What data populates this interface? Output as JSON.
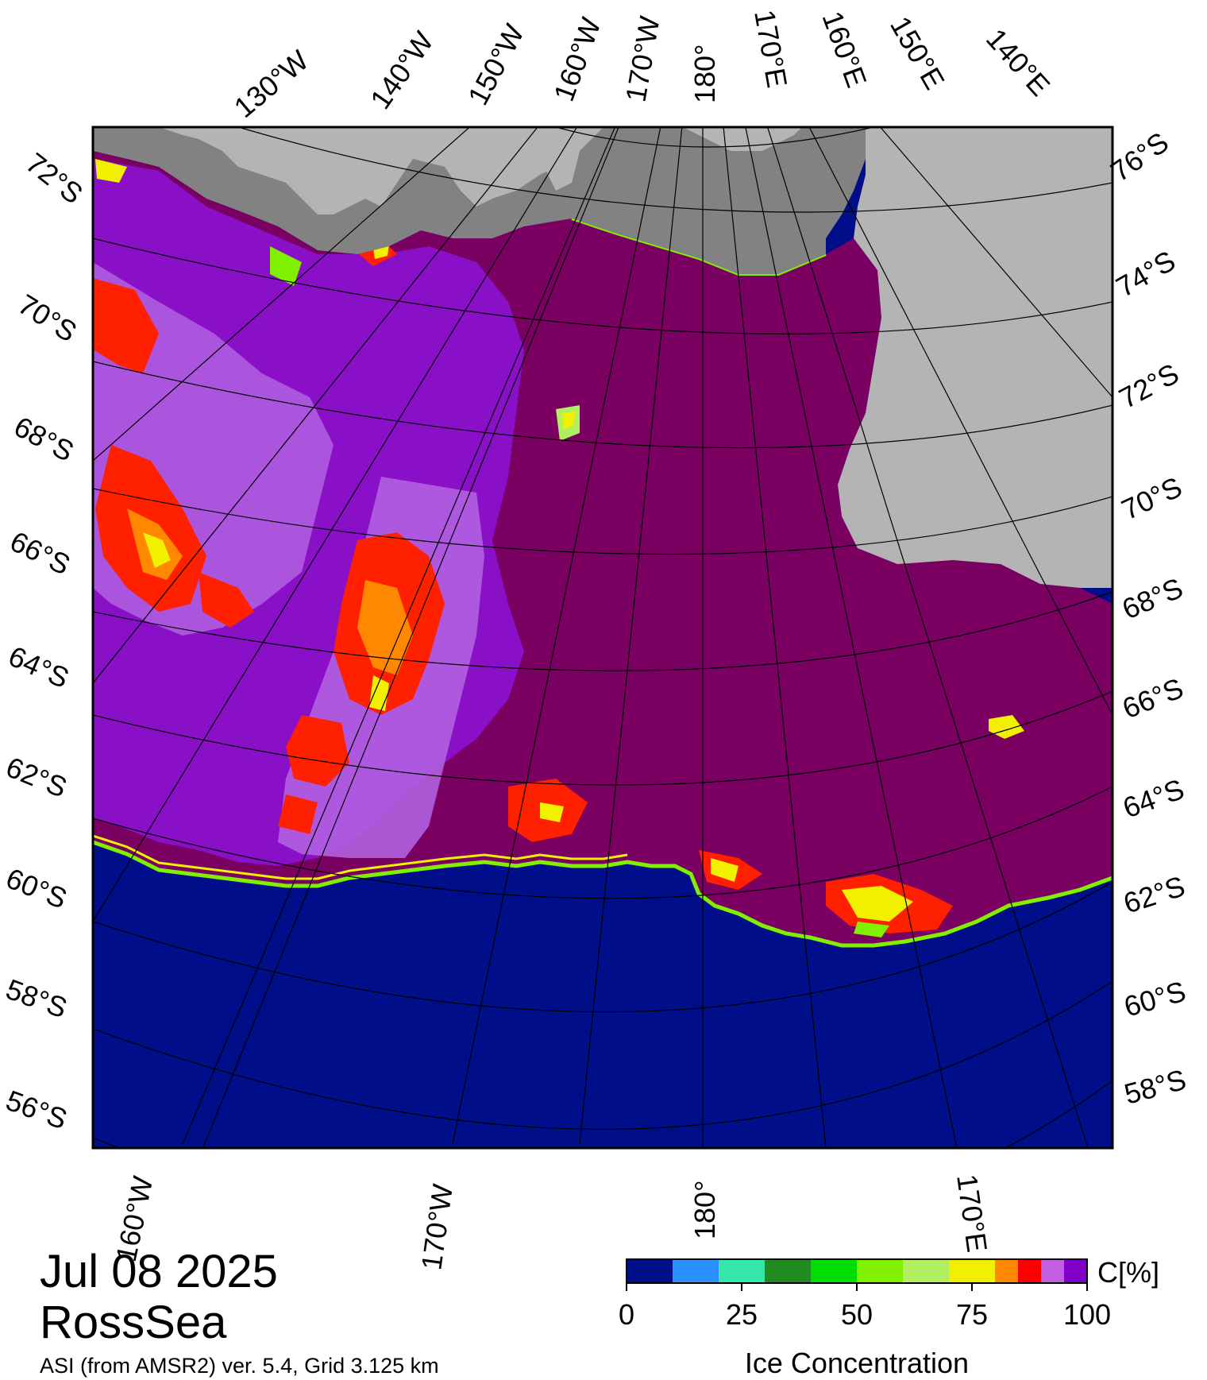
{
  "title": {
    "date": "Jul 08 2025",
    "region": "RossSea",
    "credit": "ASI (from AMSR2) ver. 5.4,  Grid 3.125 km"
  },
  "graticule": {
    "longitude_labels_top": [
      "130°W",
      "140°W",
      "150°W",
      "160°W",
      "170°W",
      "180°",
      "170°E",
      "160°E",
      "150°E",
      "140°E"
    ],
    "longitude_labels_bottom": [
      "160°W",
      "170°W",
      "180°",
      "170°E"
    ],
    "latitude_labels_left": [
      "72°S",
      "70°S",
      "68°S",
      "66°S",
      "64°S",
      "62°S",
      "60°S",
      "58°S",
      "56°S"
    ],
    "latitude_labels_right": [
      "76°S",
      "74°S",
      "72°S",
      "70°S",
      "68°S",
      "66°S",
      "64°S",
      "62°S",
      "60°S",
      "58°S"
    ]
  },
  "colorbar": {
    "title": "Ice Concentration",
    "unit": "C[%]",
    "ticks": [
      "0",
      "25",
      "50",
      "75",
      "100"
    ],
    "colors": [
      "#000e8a",
      "#2a8fff",
      "#33e8a8",
      "#228b22",
      "#00dd00",
      "#7ff000",
      "#b0f060",
      "#f0f000",
      "#ff8800",
      "#ff0000",
      "#c060e0",
      "#8000c8"
    ]
  },
  "map_colors": {
    "open_water": "#000e8a",
    "ice_100": "#7a0062",
    "ice_95": "#8a10c8",
    "ice_90": "#b060e0",
    "land": "#b4b4b4",
    "ice_shelf": "#828282"
  }
}
